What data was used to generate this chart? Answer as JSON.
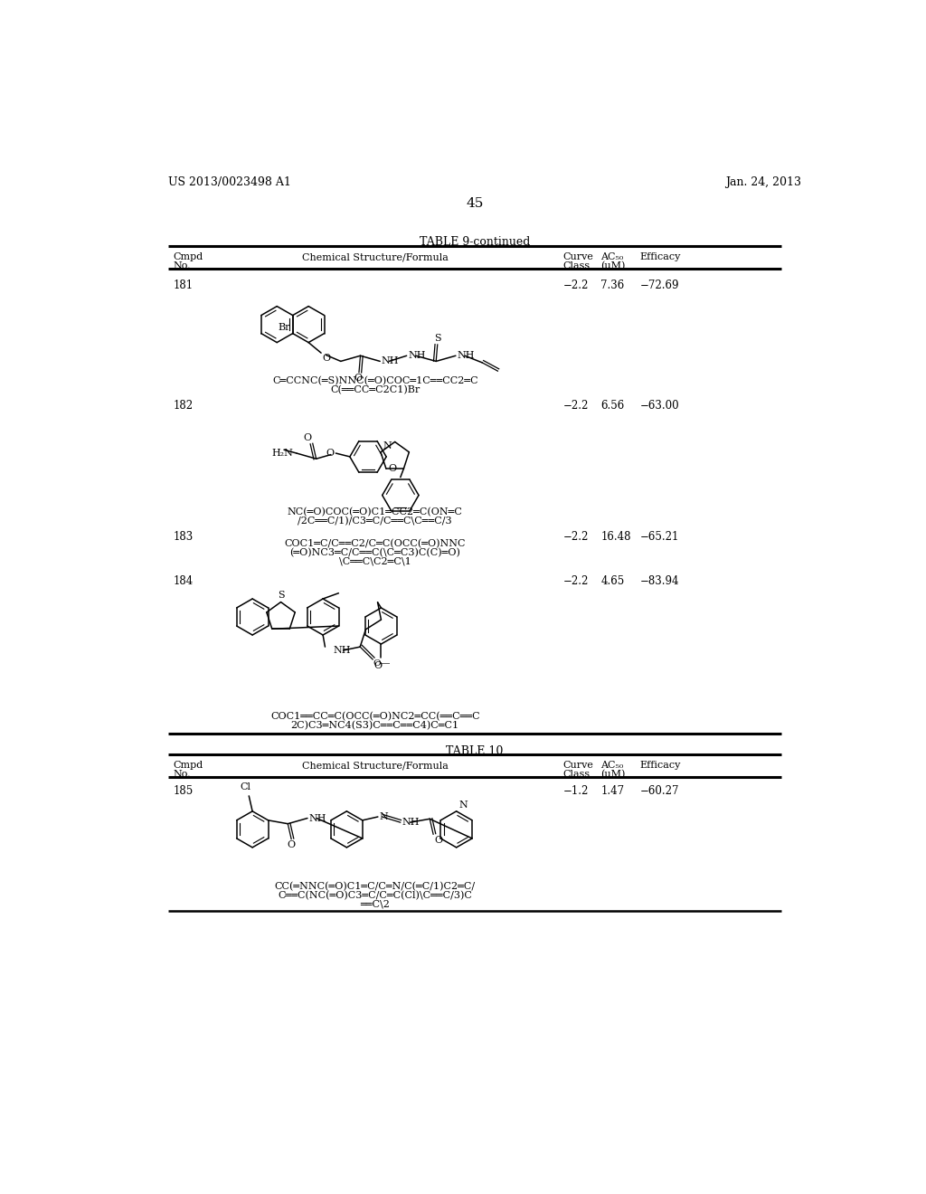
{
  "page_number": "45",
  "patent_number": "US 2013/0023498 A1",
  "patent_date": "Jan. 24, 2013",
  "table1_title": "TABLE 9-continued",
  "table2_title": "TABLE 10",
  "bg_color": "#ffffff",
  "text_color": "#000000",
  "rows": [
    {
      "cmpd": "181",
      "formula_line1": "C═CCNC(═S)NNC(═O)COC═1C══CC2═C",
      "formula_line2": "C(══CC═C2C1)Br",
      "curve": "−2.2",
      "ac50": "7.36",
      "efficacy": "−72.69"
    },
    {
      "cmpd": "182",
      "formula_line1": "NC(═O)COC(═O)C1═CC2═C(ON═C",
      "formula_line2": "/2C══C/1)/C3═C/C══C\\C══C/3",
      "curve": "−2.2",
      "ac50": "6.56",
      "efficacy": "−63.00"
    },
    {
      "cmpd": "183",
      "formula_line1": "COC1═C/C══C2/C═C(OCC(═O)NNC",
      "formula_line2": "(═O)NC3═C/C══C(\\C═C3)C(C)═O)",
      "formula_line3": "\\C══C\\C2═C\\1",
      "curve": "−2.2",
      "ac50": "16.48",
      "efficacy": "−65.21"
    },
    {
      "cmpd": "184",
      "formula_line1": "COC1══CC═C(OCC(═O)NC2═CC(══C══C",
      "formula_line2": "2C)C3═NC4(S3)C══C══C4)C═C1",
      "curve": "−2.2",
      "ac50": "4.65",
      "efficacy": "−83.94"
    }
  ],
  "rows2": [
    {
      "cmpd": "185",
      "formula_line1": "CC(═NNC(═O)C1═C/C═N/C(═C/1)C2═C/",
      "formula_line2": "C══C(NC(═O)C3═C/C═C(Cl)\\C══C/3)C",
      "formula_line3": "══C\\2",
      "curve": "−1.2",
      "ac50": "1.47",
      "efficacy": "−60.27"
    }
  ]
}
